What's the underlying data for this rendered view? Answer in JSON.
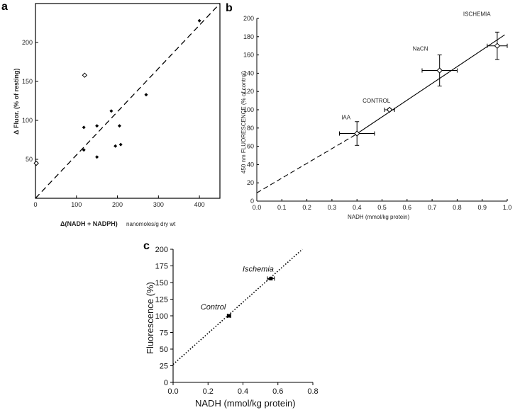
{
  "chart_data": [
    {
      "panel": "a",
      "type": "scatter",
      "xlabel": "Δ(NADH + NADPH)",
      "xunit": "nanomoles/g dry wt",
      "ylabel": "Δ Fluor. (% of resting)",
      "xlim": [
        0,
        450
      ],
      "ylim": [
        0,
        250
      ],
      "xticks": [
        "0",
        "100",
        "200",
        "300",
        "400"
      ],
      "yticks": [
        "50",
        "100",
        "150",
        "200"
      ],
      "points": [
        {
          "x": 2,
          "y": 45,
          "open": true
        },
        {
          "x": 120,
          "y": 158,
          "open": true
        },
        {
          "x": 118,
          "y": 91
        },
        {
          "x": 118,
          "y": 62
        },
        {
          "x": 150,
          "y": 93
        },
        {
          "x": 150,
          "y": 53
        },
        {
          "x": 185,
          "y": 112
        },
        {
          "x": 195,
          "y": 67
        },
        {
          "x": 205,
          "y": 93
        },
        {
          "x": 208,
          "y": 69
        },
        {
          "x": 270,
          "y": 133
        },
        {
          "x": 400,
          "y": 228
        }
      ],
      "reference_line": {
        "x": [
          0,
          450
        ],
        "y": [
          0,
          250
        ],
        "style": "dashed"
      }
    },
    {
      "panel": "b",
      "type": "scatter",
      "xlabel": "NADH (mmol/kg protein)",
      "ylabel": "450 nm FLUORESCENCE (% of control)",
      "xlim": [
        0,
        1.0
      ],
      "ylim": [
        0,
        200
      ],
      "xticks": [
        "0.0",
        "0.1",
        "0.2",
        "0.3",
        "0.4",
        "0.5",
        "0.6",
        "0.7",
        "0.8",
        "0.9",
        "1.0"
      ],
      "yticks": [
        "0",
        "20",
        "40",
        "60",
        "80",
        "100",
        "120",
        "140",
        "160",
        "180",
        "200"
      ],
      "points": [
        {
          "label": "IAA",
          "x": 0.4,
          "y": 74,
          "xerr": 0.07,
          "yerr": 13
        },
        {
          "label": "CONTROL",
          "x": 0.53,
          "y": 100,
          "xerr": 0.02,
          "yerr": 1
        },
        {
          "label": "NaCN",
          "x": 0.73,
          "y": 143,
          "xerr": 0.07,
          "yerr": 17
        },
        {
          "label": "ISCHEMIA",
          "x": 0.96,
          "y": 170,
          "xerr": 0.04,
          "yerr": 15
        }
      ],
      "fit_line": {
        "x": [
          0.39,
          0.99
        ],
        "y": [
          72,
          182
        ],
        "style": "solid"
      },
      "extrapolation": {
        "x": [
          0.0,
          0.39
        ],
        "y": [
          9,
          72
        ],
        "style": "dashed"
      }
    },
    {
      "panel": "c",
      "type": "scatter",
      "xlabel": "NADH (mmol/kg protein)",
      "ylabel": "Fluorescence (%)",
      "xlim": [
        0,
        0.8
      ],
      "ylim": [
        0,
        200
      ],
      "xticks": [
        "0.0",
        "0.2",
        "0.4",
        "0.6",
        "0.8"
      ],
      "yticks": [
        "0",
        "25",
        "50",
        "75",
        "100",
        "125",
        "150",
        "175",
        "200"
      ],
      "points": [
        {
          "label": "Control",
          "x": 0.32,
          "y": 100,
          "xerr": 0.01,
          "yerr": 2
        },
        {
          "label": "Ischemia",
          "x": 0.56,
          "y": 156,
          "xerr": 0.02,
          "yerr": 2
        }
      ],
      "fit_line": {
        "x": [
          0.0,
          0.74
        ],
        "y": [
          27,
          200
        ],
        "style": "dotted"
      }
    }
  ]
}
